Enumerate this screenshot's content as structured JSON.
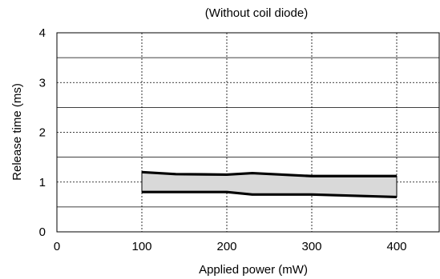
{
  "chart_data": {
    "type": "area",
    "subtitle": "(Without coil diode)",
    "xlabel": "Applied power (mW)",
    "ylabel": "Release time (ms)",
    "xlim": [
      0,
      450
    ],
    "ylim": [
      0,
      4
    ],
    "x_ticks": [
      0,
      100,
      200,
      300,
      400
    ],
    "y_ticks": [
      0,
      1,
      2,
      3,
      4
    ],
    "grid": {
      "x_major": "dashed",
      "y_major": "dashed",
      "y_minor": "solid"
    },
    "band_fill": "#d9d9d9",
    "line_color": "#000000",
    "series": [
      {
        "x": [
          100,
          140,
          200,
          230,
          300,
          400
        ],
        "values": [
          1.2,
          1.16,
          1.15,
          1.18,
          1.12,
          1.12
        ]
      },
      {
        "x": [
          100,
          200,
          230,
          300,
          400
        ],
        "values": [
          0.8,
          0.8,
          0.75,
          0.75,
          0.7
        ]
      }
    ]
  }
}
